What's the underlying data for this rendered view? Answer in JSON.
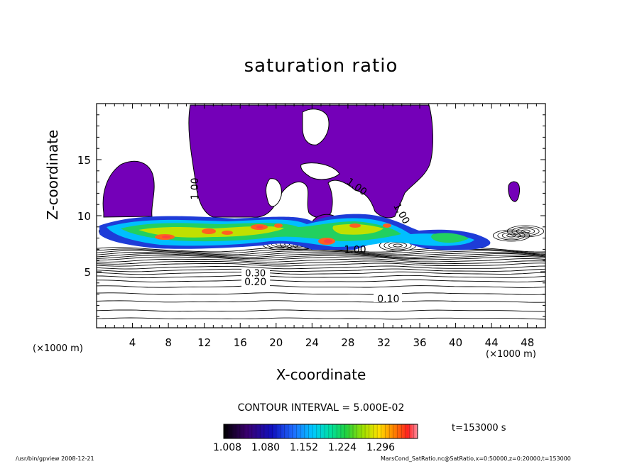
{
  "chart_data": {
    "type": "heatmap",
    "title": "saturation ratio",
    "xlabel": "X-coordinate",
    "ylabel": "Z-coordinate",
    "x_unit": "(×1000 m)",
    "y_unit": "(×1000 m)",
    "xlim": [
      0,
      50
    ],
    "ylim": [
      0,
      20
    ],
    "x_ticks": [
      4,
      8,
      12,
      16,
      20,
      24,
      28,
      32,
      36,
      40,
      44,
      48
    ],
    "y_ticks": [
      5,
      10,
      15
    ],
    "contour_interval_text": "CONTOUR INTERVAL = 5.000E-02",
    "contour_labels": [
      {
        "text": "0.10",
        "x": 32.5,
        "y": 2.6
      },
      {
        "text": "0.20",
        "x": 17.7,
        "y": 4.1
      },
      {
        "text": "0.30",
        "x": 17.7,
        "y": 4.9
      },
      {
        "text": "1.00",
        "x": 28.8,
        "y": 7.0
      },
      {
        "text": "1.00",
        "x": 29.0,
        "y": 12.6
      },
      {
        "text": "1.00",
        "x": 10.9,
        "y": 12.4
      },
      {
        "text": "1.00",
        "x": 34.0,
        "y": 10.2
      }
    ],
    "colorbar": {
      "tick_labels": [
        "1.008",
        "1.080",
        "1.152",
        "1.224",
        "1.296"
      ],
      "colors": [
        "#000000",
        "#3a0070",
        "#1010c0",
        "#1e6cff",
        "#00c8ff",
        "#00e0a0",
        "#20d040",
        "#a0e000",
        "#ffe000",
        "#ff8000",
        "#ff2020",
        "#ff90a0"
      ]
    },
    "fill_color_supersaturated": "#7400b8",
    "time_label": "t=153000 s"
  },
  "footer": {
    "left": "/usr/bin/gpview   2008-12-21",
    "right": "MarsCond_SatRatio.nc@SatRatio,x=0:50000,z=0:20000,t=153000"
  }
}
